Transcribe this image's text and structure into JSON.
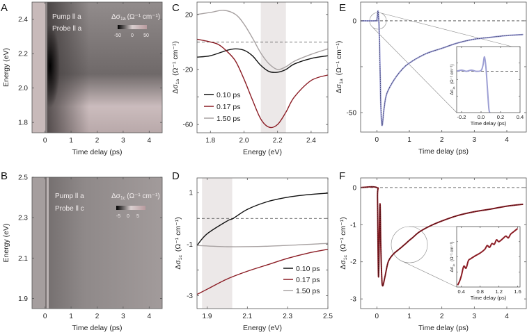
{
  "colors": {
    "black": "#111111",
    "red": "#8b1c24",
    "gray": "#a8a2a2",
    "blue": "#9d9fd4",
    "shade": "#ece8e8"
  },
  "chart_data": [
    {
      "panel": "A",
      "type": "heatmap",
      "xlabel": "Time delay (ps)",
      "ylabel": "Energy (eV)",
      "xlim": [
        -0.5,
        4.5
      ],
      "ylim": [
        1.74,
        2.5
      ],
      "xticks": [
        0,
        1,
        2,
        3,
        4
      ],
      "yticks": [
        1.8,
        2.0,
        2.2,
        2.4
      ],
      "annotations": [
        "Pump ll a",
        "Probe ll a"
      ],
      "colorbar": {
        "label_base": "Δσ",
        "label_sub": "1a",
        "label_unit": "(Ω⁻¹ cm⁻¹)",
        "ticks": [
          -50,
          0,
          50
        ]
      }
    },
    {
      "panel": "B",
      "type": "heatmap",
      "xlabel": "Time delay (ps)",
      "ylabel": "Energy (eV)",
      "xlim": [
        -0.5,
        4.5
      ],
      "ylim": [
        1.85,
        2.5
      ],
      "xticks": [
        0,
        1,
        2,
        3,
        4
      ],
      "yticks": [
        1.9,
        2.1,
        2.3,
        2.5
      ],
      "annotations": [
        "Pump ll a",
        "Probe ll c"
      ],
      "colorbar": {
        "label_base": "Δσ",
        "label_sub": "1c",
        "label_unit": "(Ω⁻¹ cm⁻¹)",
        "ticks": [
          -5,
          0,
          5
        ]
      }
    },
    {
      "panel": "C",
      "type": "line",
      "xlabel": "Energy (eV)",
      "ylabel_base": "Δσ",
      "ylabel_sub": "1a",
      "ylabel_unit": "(Ω⁻¹ cm⁻¹)",
      "xlim": [
        1.72,
        2.5
      ],
      "ylim": [
        -66,
        29
      ],
      "xticks": [
        1.8,
        2.0,
        2.2,
        2.4
      ],
      "yticks": [
        20,
        -20,
        -60
      ],
      "yminor": [
        0,
        -40
      ],
      "shaded_region": [
        2.1,
        2.25
      ],
      "zero_line": true,
      "series": [
        {
          "name": "0.10 ps",
          "color": "#111111",
          "x": [
            1.72,
            1.8,
            1.9,
            1.95,
            2.0,
            2.05,
            2.1,
            2.15,
            2.2,
            2.25,
            2.3,
            2.4,
            2.5
          ],
          "y": [
            -11,
            -10,
            -6,
            -5,
            -6,
            -10,
            -17,
            -21.5,
            -22,
            -20,
            -16,
            -12,
            -10
          ]
        },
        {
          "name": "0.17 ps",
          "color": "#8b1c24",
          "x": [
            1.72,
            1.8,
            1.85,
            1.9,
            1.95,
            2.0,
            2.05,
            2.1,
            2.15,
            2.2,
            2.25,
            2.3,
            2.4,
            2.5
          ],
          "y": [
            2,
            0,
            -2,
            -7,
            -14,
            -27,
            -42,
            -56,
            -62,
            -60,
            -51,
            -40,
            -28,
            -24
          ]
        },
        {
          "name": "1.50 ps",
          "color": "#a8a2a2",
          "x": [
            1.72,
            1.8,
            1.88,
            1.95,
            2.0,
            2.05,
            2.1,
            2.15,
            2.2,
            2.25,
            2.3,
            2.4,
            2.5
          ],
          "y": [
            20,
            21.5,
            23,
            20,
            13,
            3,
            -8,
            -16,
            -20,
            -18,
            -14,
            -9,
            -5
          ]
        }
      ]
    },
    {
      "panel": "D",
      "type": "line",
      "xlabel": "Energy (eV)",
      "ylabel_base": "Δσ",
      "ylabel_sub": "1c",
      "ylabel_unit": "(Ω⁻¹ cm⁻¹)",
      "xlim": [
        1.85,
        2.5
      ],
      "ylim": [
        -3.5,
        1.57
      ],
      "xticks": [
        1.9,
        2.1,
        2.3,
        2.5
      ],
      "yticks": [
        1,
        -1,
        -3
      ],
      "yminor": [
        0,
        -2
      ],
      "shaded_region": [
        1.875,
        2.025
      ],
      "zero_line": true,
      "series": [
        {
          "name": "0.10 ps",
          "color": "#111111",
          "x": [
            1.85,
            1.9,
            2.0,
            2.03,
            2.1,
            2.2,
            2.3,
            2.4,
            2.5
          ],
          "y": [
            -1.05,
            -0.6,
            -0.1,
            0.0,
            0.35,
            0.65,
            0.82,
            0.92,
            0.98
          ]
        },
        {
          "name": "0.17 ps",
          "color": "#8b1c24",
          "x": [
            1.85,
            1.9,
            2.0,
            2.1,
            2.2,
            2.3,
            2.4,
            2.5
          ],
          "y": [
            -2.95,
            -2.75,
            -2.35,
            -2.05,
            -1.8,
            -1.55,
            -1.35,
            -1.2
          ]
        },
        {
          "name": "1.50 ps",
          "color": "#a8a2a2",
          "x": [
            1.85,
            2.0,
            2.2,
            2.5
          ],
          "y": [
            -1.05,
            -1.1,
            -1.08,
            -0.97
          ]
        }
      ]
    },
    {
      "panel": "E",
      "type": "line",
      "xlabel": "Time delay (ps)",
      "ylabel_base": "Δσ",
      "ylabel_sub": "1a",
      "ylabel_unit": "(Ω⁻¹ cm⁻¹)",
      "xlim": [
        -0.5,
        4.6
      ],
      "ylim": [
        -60.6,
        10.2
      ],
      "xticks": [
        0,
        1,
        2,
        3,
        4
      ],
      "yticks": [
        0,
        -50
      ],
      "yminor": [
        -25
      ],
      "zero_line": true,
      "series": [
        {
          "name": "data",
          "color": "#9d9fd4",
          "x": [
            -0.5,
            -0.05,
            0.0,
            0.04,
            0.08,
            0.12,
            0.16,
            0.22,
            0.3,
            0.5,
            0.75,
            1.0,
            1.5,
            2.0,
            2.5,
            3.0,
            3.5,
            4.0,
            4.5
          ],
          "y": [
            0,
            0,
            0.5,
            5,
            -10,
            -45,
            -57,
            -48,
            -40,
            -33,
            -27,
            -23,
            -18,
            -15,
            -12,
            -10,
            -9,
            -8,
            -7.5
          ]
        }
      ],
      "inset": {
        "xlabel": "Time delay (ps)",
        "ylabel_base": "Δσ",
        "ylabel_sub": "1a",
        "ylabel_unit": "(Ω⁻¹ cm⁻¹)",
        "xlim": [
          -0.25,
          0.4
        ],
        "ylim": [
          -10,
          6
        ],
        "xticks": [
          -0.2,
          0.0,
          0.2,
          0.4
        ],
        "x": [
          -0.25,
          -0.2,
          -0.15,
          -0.1,
          -0.05,
          0.0,
          0.02,
          0.035,
          0.05,
          0.065,
          0.08,
          0.09
        ],
        "y": [
          0,
          0.3,
          0,
          0.3,
          0,
          0.2,
          1.5,
          3.5,
          1,
          -4,
          -9,
          -10
        ]
      }
    },
    {
      "panel": "F",
      "type": "line",
      "xlabel": "Time delay (ps)",
      "ylabel_base": "Δσ",
      "ylabel_sub": "1c",
      "ylabel_unit": "(Ω⁻¹ cm⁻¹)",
      "xlim": [
        -0.5,
        4.6
      ],
      "ylim": [
        -3.26,
        0.26
      ],
      "xticks": [
        0,
        1,
        2,
        3,
        4
      ],
      "yticks": [
        0,
        -1,
        -2,
        -3
      ],
      "zero_line": true,
      "series": [
        {
          "name": "data",
          "color": "#8b1c24",
          "x": [
            -0.5,
            0.0,
            0.02,
            0.05,
            0.08,
            0.1,
            0.12,
            0.15,
            0.18,
            0.25,
            0.35,
            0.5,
            0.7,
            0.9,
            1.0,
            1.1,
            1.3,
            1.6,
            2.0,
            2.5,
            3.0,
            3.5,
            4.0,
            4.5
          ],
          "y": [
            0,
            0,
            -0.3,
            -2.4,
            -1.0,
            -0.45,
            -1.5,
            -2.4,
            -2.65,
            -2.4,
            -2.0,
            -1.8,
            -1.65,
            -1.5,
            -1.42,
            -1.35,
            -1.2,
            -1.05,
            -0.9,
            -0.75,
            -0.65,
            -0.58,
            -0.5,
            -0.45
          ]
        }
      ],
      "inset": {
        "xlabel": "Time delay (ps)",
        "ylabel_base": "Δσ",
        "ylabel_sub": "1c",
        "ylabel_unit": "(Ω⁻¹ cm⁻¹)",
        "xlim": [
          0.3,
          1.65
        ],
        "ylim": [
          -2.65,
          -1.05
        ],
        "xticks": [
          0.4,
          0.8,
          1.2,
          1.6
        ],
        "x": [
          0.32,
          0.36,
          0.4,
          0.45,
          0.5,
          0.55,
          0.6,
          0.7,
          0.8,
          0.9,
          0.95,
          1.0,
          1.05,
          1.1,
          1.15,
          1.2,
          1.3,
          1.35,
          1.4,
          1.45,
          1.5,
          1.55,
          1.6
        ],
        "y": [
          -2.6,
          -2.5,
          -2.35,
          -2.1,
          -2.15,
          -1.95,
          -1.9,
          -1.82,
          -1.75,
          -1.65,
          -1.55,
          -1.6,
          -1.5,
          -1.52,
          -1.4,
          -1.45,
          -1.35,
          -1.3,
          -1.35,
          -1.25,
          -1.2,
          -1.15,
          -1.1
        ]
      }
    }
  ]
}
